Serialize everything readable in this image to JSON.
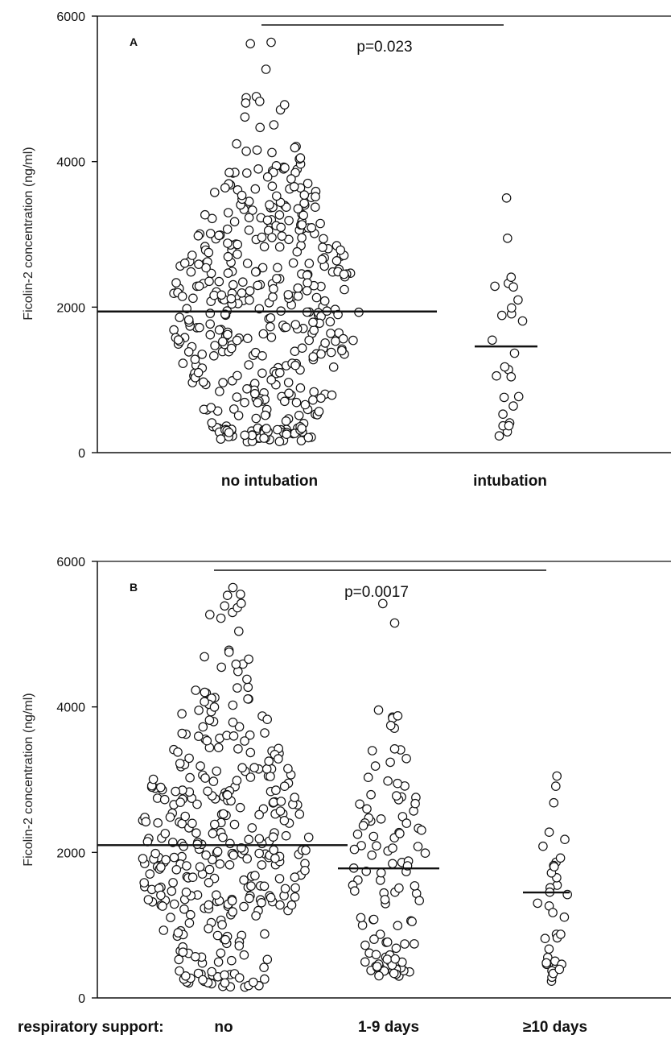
{
  "chart_data": [
    {
      "type": "scatter",
      "panel_label": "A",
      "ylabel": "Ficolin-2 concentration (ng/ml)",
      "ylim": [
        0,
        6000
      ],
      "yticks": [
        "0",
        "2000",
        "4000",
        "6000"
      ],
      "categories": [
        "no intubation",
        "intubation"
      ],
      "group_prefix": "",
      "annotation": "p=0.023",
      "medians": [
        1940,
        1460
      ],
      "groups": [
        {
          "name": "no intubation",
          "n": 430,
          "min": 150,
          "max": 5640
        },
        {
          "name": "intubation",
          "n": 26,
          "min": 230,
          "max": 3500
        }
      ]
    },
    {
      "type": "scatter",
      "panel_label": "B",
      "ylabel": "Ficolin-2 concentration (ng/ml)",
      "ylim": [
        0,
        6000
      ],
      "yticks": [
        "0",
        "2000",
        "4000",
        "6000"
      ],
      "categories": [
        "no",
        "1-9 days",
        "≥10 days"
      ],
      "group_prefix": "respiratory support:",
      "annotation": "p=0.0017",
      "medians": [
        2100,
        1780,
        1450
      ],
      "groups": [
        {
          "name": "no",
          "n": 350,
          "min": 150,
          "max": 5640
        },
        {
          "name": "1-9 days",
          "n": 110,
          "min": 300,
          "max": 5420
        },
        {
          "name": "≥10 days",
          "n": 36,
          "min": 230,
          "max": 3050
        }
      ]
    }
  ]
}
